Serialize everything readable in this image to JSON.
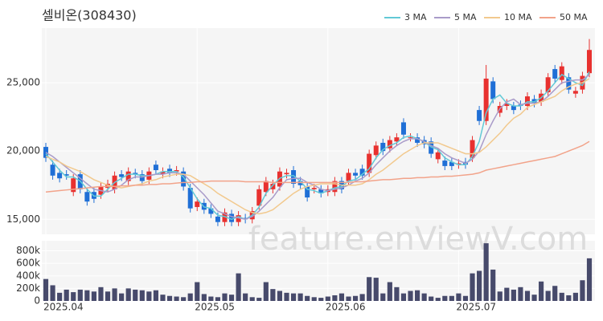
{
  "watermark": "feature.enViewV.com",
  "chart_data": [
    {
      "type": "candlestick",
      "title": "셀비온(308430)",
      "open": [
        20300,
        19000,
        18400,
        18300,
        17000,
        18300,
        17000,
        17000,
        16800,
        17300,
        17200,
        18300,
        17800,
        18400,
        18300,
        17900,
        19000,
        18300,
        18700,
        18500,
        18500,
        17300,
        15900,
        16200,
        15800,
        15200,
        14800,
        15400,
        14800,
        15100,
        15000,
        16000,
        17000,
        17200,
        17400,
        18300,
        18600,
        17800,
        17400,
        17200,
        17200,
        17000,
        17000,
        17800,
        17800,
        18400,
        18700,
        18400,
        19700,
        20600,
        20200,
        20700,
        22100,
        21000,
        21000,
        20800,
        20700,
        19400,
        19300,
        19200,
        19000,
        19200,
        19500,
        23000,
        22200,
        25100,
        22800,
        23300,
        23300,
        23400,
        23300,
        23800,
        23600,
        24300,
        26000,
        25200,
        25400,
        24200,
        24500,
        25700
      ],
      "high": [
        20600,
        19300,
        18700,
        18600,
        18300,
        18600,
        17300,
        17300,
        17700,
        17900,
        18500,
        18600,
        18800,
        18700,
        18600,
        18800,
        19300,
        18800,
        19000,
        18900,
        18800,
        17600,
        16600,
        16500,
        16100,
        15500,
        15800,
        15700,
        15600,
        15400,
        15900,
        17500,
        18100,
        17900,
        18800,
        18700,
        18900,
        18100,
        17700,
        17600,
        17500,
        17500,
        18100,
        18100,
        18700,
        18700,
        19000,
        20100,
        20700,
        20900,
        21100,
        21300,
        22400,
        21300,
        21300,
        21100,
        21000,
        20200,
        19600,
        19500,
        19400,
        19500,
        21100,
        23300,
        26300,
        25400,
        23600,
        23800,
        23600,
        23700,
        24300,
        24100,
        24500,
        25700,
        26300,
        26500,
        25700,
        24700,
        25800,
        28200
      ],
      "low": [
        19200,
        17900,
        17700,
        17900,
        16700,
        16900,
        16000,
        16200,
        16500,
        17000,
        16900,
        17800,
        17500,
        18000,
        17500,
        17600,
        18300,
        18000,
        18100,
        18200,
        17100,
        15500,
        15600,
        15400,
        15100,
        14500,
        14500,
        14500,
        14500,
        14700,
        14700,
        15700,
        16700,
        16900,
        17100,
        18000,
        17300,
        17200,
        16300,
        16900,
        16600,
        16700,
        16700,
        16900,
        17500,
        17900,
        17900,
        18100,
        19400,
        19700,
        19900,
        20400,
        20900,
        20700,
        20300,
        20200,
        19500,
        19100,
        18600,
        18600,
        18700,
        18700,
        19200,
        21900,
        21900,
        23500,
        22500,
        23000,
        22700,
        23000,
        23000,
        23200,
        23300,
        24000,
        25000,
        24900,
        24200,
        23900,
        24200,
        25400
      ],
      "close": [
        19500,
        18200,
        18000,
        18200,
        18000,
        17200,
        16300,
        16500,
        17400,
        17600,
        18200,
        18100,
        18500,
        18300,
        17800,
        18500,
        18600,
        18500,
        18400,
        18600,
        17400,
        15800,
        16300,
        15700,
        15400,
        14800,
        15500,
        14800,
        15300,
        15000,
        15600,
        17200,
        17800,
        17600,
        18500,
        18400,
        17600,
        17500,
        16600,
        17300,
        16900,
        17200,
        17800,
        17200,
        18400,
        18200,
        18200,
        19800,
        20400,
        20000,
        20800,
        21000,
        21200,
        21000,
        20600,
        20500,
        19800,
        19900,
        18900,
        18900,
        19100,
        19000,
        20800,
        22200,
        25300,
        23800,
        23300,
        23500,
        23000,
        23300,
        24000,
        23500,
        24200,
        25400,
        25300,
        26200,
        24500,
        24400,
        25500,
        27400
      ],
      "up_color": "#e8312f",
      "down_color": "#1f6fd6",
      "series": [
        {
          "name": "3 MA",
          "color": "#62c9d6",
          "values": [
            19800,
            19200,
            18600,
            18100,
            18100,
            17800,
            17200,
            16700,
            16700,
            17200,
            17700,
            18000,
            18300,
            18300,
            18200,
            18200,
            18300,
            18500,
            18500,
            18500,
            18100,
            17300,
            16500,
            15900,
            15800,
            15300,
            15200,
            15000,
            15200,
            15000,
            15300,
            15900,
            16900,
            17500,
            18000,
            18200,
            18200,
            17800,
            17200,
            17100,
            16900,
            17100,
            17300,
            17400,
            17800,
            17900,
            18300,
            18700,
            19500,
            20100,
            20400,
            20600,
            21000,
            21100,
            20900,
            20700,
            20300,
            20100,
            19500,
            19200,
            19000,
            19000,
            19600,
            20700,
            22800,
            23800,
            24100,
            23500,
            23300,
            23300,
            23600,
            23600,
            23900,
            24400,
            25000,
            25600,
            25300,
            25000,
            24800,
            25800
          ]
        },
        {
          "name": "5 MA",
          "color": "#a99bc9",
          "values": [
            19900,
            19600,
            19200,
            18800,
            18400,
            18000,
            17600,
            17200,
            17100,
            17000,
            17200,
            17500,
            17900,
            18100,
            18100,
            18200,
            18300,
            18300,
            18400,
            18400,
            18300,
            17800,
            17300,
            16800,
            16200,
            15600,
            15400,
            15200,
            15100,
            15000,
            15200,
            15600,
            16100,
            16600,
            17300,
            17900,
            18000,
            18000,
            17700,
            17500,
            17200,
            17100,
            17200,
            17300,
            17500,
            17800,
            18000,
            18400,
            19000,
            19500,
            20000,
            20400,
            20700,
            20900,
            20900,
            20700,
            20400,
            20200,
            19800,
            19500,
            19300,
            19100,
            19400,
            20000,
            21200,
            22200,
            23100,
            23600,
            23800,
            23400,
            23500,
            23500,
            23600,
            24000,
            24500,
            25000,
            25100,
            25200,
            25200,
            25600
          ]
        },
        {
          "name": "10 MA",
          "color": "#f2c98e",
          "values": [
            19600,
            19400,
            19200,
            18900,
            18700,
            18500,
            18200,
            17900,
            17700,
            17500,
            17400,
            17300,
            17400,
            17500,
            17600,
            17800,
            17900,
            18100,
            18200,
            18300,
            18300,
            18200,
            17900,
            17600,
            17300,
            16900,
            16600,
            16300,
            16000,
            15700,
            15500,
            15400,
            15500,
            15700,
            16100,
            16500,
            16900,
            17200,
            17400,
            17500,
            17600,
            17600,
            17600,
            17500,
            17500,
            17500,
            17600,
            17900,
            18300,
            18600,
            19000,
            19400,
            19800,
            20100,
            20400,
            20600,
            20600,
            20600,
            20400,
            20200,
            20000,
            19800,
            19800,
            19900,
            20300,
            20800,
            21300,
            21900,
            22400,
            22700,
            23200,
            23400,
            23600,
            23800,
            24000,
            24400,
            24700,
            24900,
            25000,
            25300
          ]
        },
        {
          "name": "50 MA",
          "color": "#f2a38a",
          "values": [
            17000,
            17050,
            17100,
            17150,
            17200,
            17250,
            17300,
            17350,
            17400,
            17400,
            17400,
            17450,
            17450,
            17500,
            17500,
            17550,
            17550,
            17600,
            17600,
            17650,
            17700,
            17700,
            17750,
            17750,
            17800,
            17800,
            17800,
            17800,
            17800,
            17750,
            17750,
            17750,
            17750,
            17700,
            17700,
            17700,
            17700,
            17700,
            17700,
            17700,
            17700,
            17700,
            17700,
            17700,
            17700,
            17750,
            17750,
            17800,
            17850,
            17900,
            17900,
            17950,
            18000,
            18000,
            18050,
            18050,
            18100,
            18100,
            18150,
            18150,
            18200,
            18250,
            18300,
            18400,
            18600,
            18700,
            18800,
            18900,
            19000,
            19100,
            19200,
            19300,
            19400,
            19500,
            19600,
            19800,
            20000,
            20200,
            20400,
            20700
          ]
        }
      ],
      "legend": "top-right",
      "grid": true,
      "ylim": [
        13900,
        29000
      ],
      "yticks": [
        {
          "value": 15000,
          "label": "15,000"
        },
        {
          "value": 20000,
          "label": "20,000"
        },
        {
          "value": 25000,
          "label": "25,000"
        }
      ]
    },
    {
      "type": "bar",
      "color": "#474a6b",
      "categories": [
        "2025.04",
        null,
        null,
        null,
        null,
        null,
        null,
        null,
        null,
        null,
        null,
        null,
        null,
        null,
        null,
        null,
        null,
        null,
        null,
        null,
        null,
        null,
        "2025.05",
        null,
        null,
        null,
        null,
        null,
        null,
        null,
        null,
        null,
        null,
        null,
        null,
        null,
        null,
        null,
        null,
        null,
        null,
        "2025.06",
        null,
        null,
        null,
        null,
        null,
        null,
        null,
        null,
        null,
        null,
        null,
        null,
        null,
        null,
        null,
        null,
        null,
        null,
        "2025.07",
        null,
        null,
        null,
        null,
        null,
        null,
        null,
        null,
        null,
        null,
        null,
        null,
        null,
        null,
        null,
        null,
        null,
        null,
        null
      ],
      "values": [
        350000,
        250000,
        130000,
        180000,
        140000,
        180000,
        170000,
        150000,
        220000,
        150000,
        200000,
        120000,
        200000,
        180000,
        170000,
        150000,
        170000,
        100000,
        80000,
        70000,
        60000,
        120000,
        300000,
        110000,
        70000,
        60000,
        120000,
        100000,
        440000,
        120000,
        60000,
        50000,
        300000,
        190000,
        160000,
        130000,
        120000,
        120000,
        80000,
        60000,
        50000,
        70000,
        90000,
        120000,
        70000,
        80000,
        110000,
        380000,
        370000,
        120000,
        300000,
        220000,
        120000,
        160000,
        170000,
        120000,
        70000,
        50000,
        80000,
        80000,
        120000,
        80000,
        440000,
        480000,
        920000,
        500000,
        150000,
        210000,
        180000,
        220000,
        160000,
        100000,
        310000,
        160000,
        240000,
        130000,
        90000,
        130000,
        330000,
        680000
      ],
      "ylim": [
        0,
        960000
      ],
      "yticks": [
        0,
        {
          "value": 200000,
          "label": "200k"
        },
        {
          "value": 400000,
          "label": "400k"
        },
        {
          "value": 600000,
          "label": "600k"
        },
        {
          "value": 800000,
          "label": "800k"
        }
      ],
      "grid": true
    }
  ]
}
